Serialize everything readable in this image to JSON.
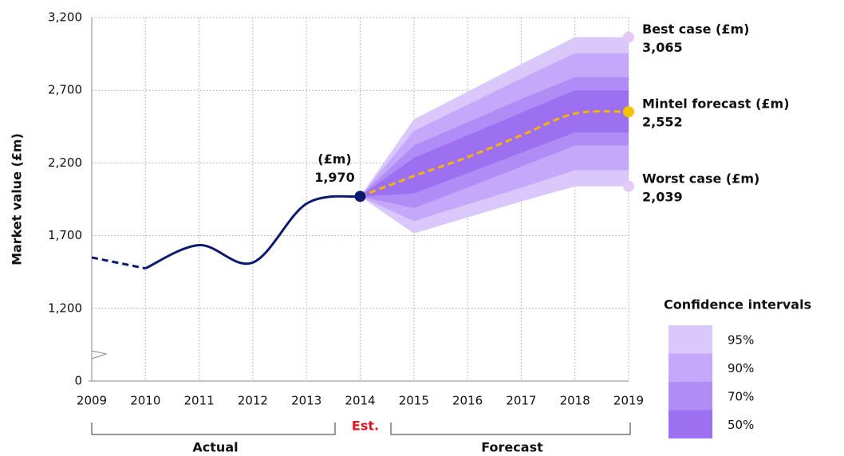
{
  "chart_data": {
    "type": "line",
    "y_label": "Market value (£m)",
    "xlim": [
      2009,
      2019
    ],
    "xticks": [
      2009,
      2010,
      2011,
      2012,
      2013,
      2014,
      2015,
      2016,
      2017,
      2018,
      2019
    ],
    "ylim": [
      700,
      3200
    ],
    "yticks": [
      0,
      {
        "value": 1200,
        "label": "1,200"
      },
      {
        "value": 1700,
        "label": "1,700"
      },
      {
        "value": 2200,
        "label": "2,200"
      },
      {
        "value": 2700,
        "label": "2,700"
      },
      {
        "value": 3200,
        "label": "3,200"
      }
    ],
    "axis_break": true,
    "grid": true,
    "series": [
      {
        "color": "#0c1a6e",
        "dashed": true,
        "x": [
          2009,
          2010
        ],
        "values": [
          1550,
          1475
        ]
      },
      {
        "color": "#0c1a6e",
        "dashed": false,
        "x": [
          2010,
          2011,
          2012,
          2013,
          2014
        ],
        "values": [
          1475,
          1635,
          1515,
          1920,
          1970
        ]
      },
      {
        "color": "#f5b400",
        "dashed": true,
        "x": [
          2014,
          2015,
          2016,
          2017,
          2018,
          2019
        ],
        "values": [
          1970,
          2110,
          2240,
          2390,
          2540,
          2552
        ]
      }
    ],
    "bands": {
      "title": "Confidence intervals",
      "x": [
        2014,
        2015,
        2016,
        2017,
        2018,
        2019
      ],
      "items": [
        {
          "name": "95%",
          "color": "#dac8fb",
          "upper": [
            1970,
            2500,
            2690,
            2880,
            3065,
            3065
          ],
          "lower": [
            1970,
            1715,
            1825,
            1935,
            2039,
            2039
          ]
        },
        {
          "name": "90%",
          "color": "#c5a8f9",
          "upper": [
            1970,
            2420,
            2600,
            2780,
            2955,
            2955
          ],
          "lower": [
            1970,
            1800,
            1915,
            2030,
            2150,
            2150
          ]
        },
        {
          "name": "70%",
          "color": "#b08cf6",
          "upper": [
            1970,
            2320,
            2480,
            2640,
            2790,
            2790
          ],
          "lower": [
            1970,
            1890,
            2030,
            2175,
            2320,
            2320
          ]
        },
        {
          "name": "50%",
          "color": "#9d70f2",
          "upper": [
            1970,
            2235,
            2390,
            2545,
            2700,
            2700
          ],
          "lower": [
            1970,
            1990,
            2130,
            2270,
            2410,
            2410
          ]
        }
      ]
    },
    "point_labels": [
      {
        "label": "(£m)",
        "value_label": "1,970",
        "x": 2014,
        "value": 1970,
        "color": "#0c1a6e"
      },
      {
        "label": "Best case (£m)",
        "value_label": "3,065",
        "x": 2019,
        "value": 3065,
        "color": "#e3cbf5"
      },
      {
        "label": "Mintel forecast (£m)",
        "value_label": "2,552",
        "x": 2019,
        "value": 2552,
        "color": "#f5c400"
      },
      {
        "label": "Worst case (£m)",
        "value_label": "2,039",
        "x": 2019,
        "value": 2039,
        "color": "#e3cbf5"
      }
    ],
    "est_label": "Est.",
    "period_labels": [
      "Actual",
      "Forecast"
    ]
  }
}
